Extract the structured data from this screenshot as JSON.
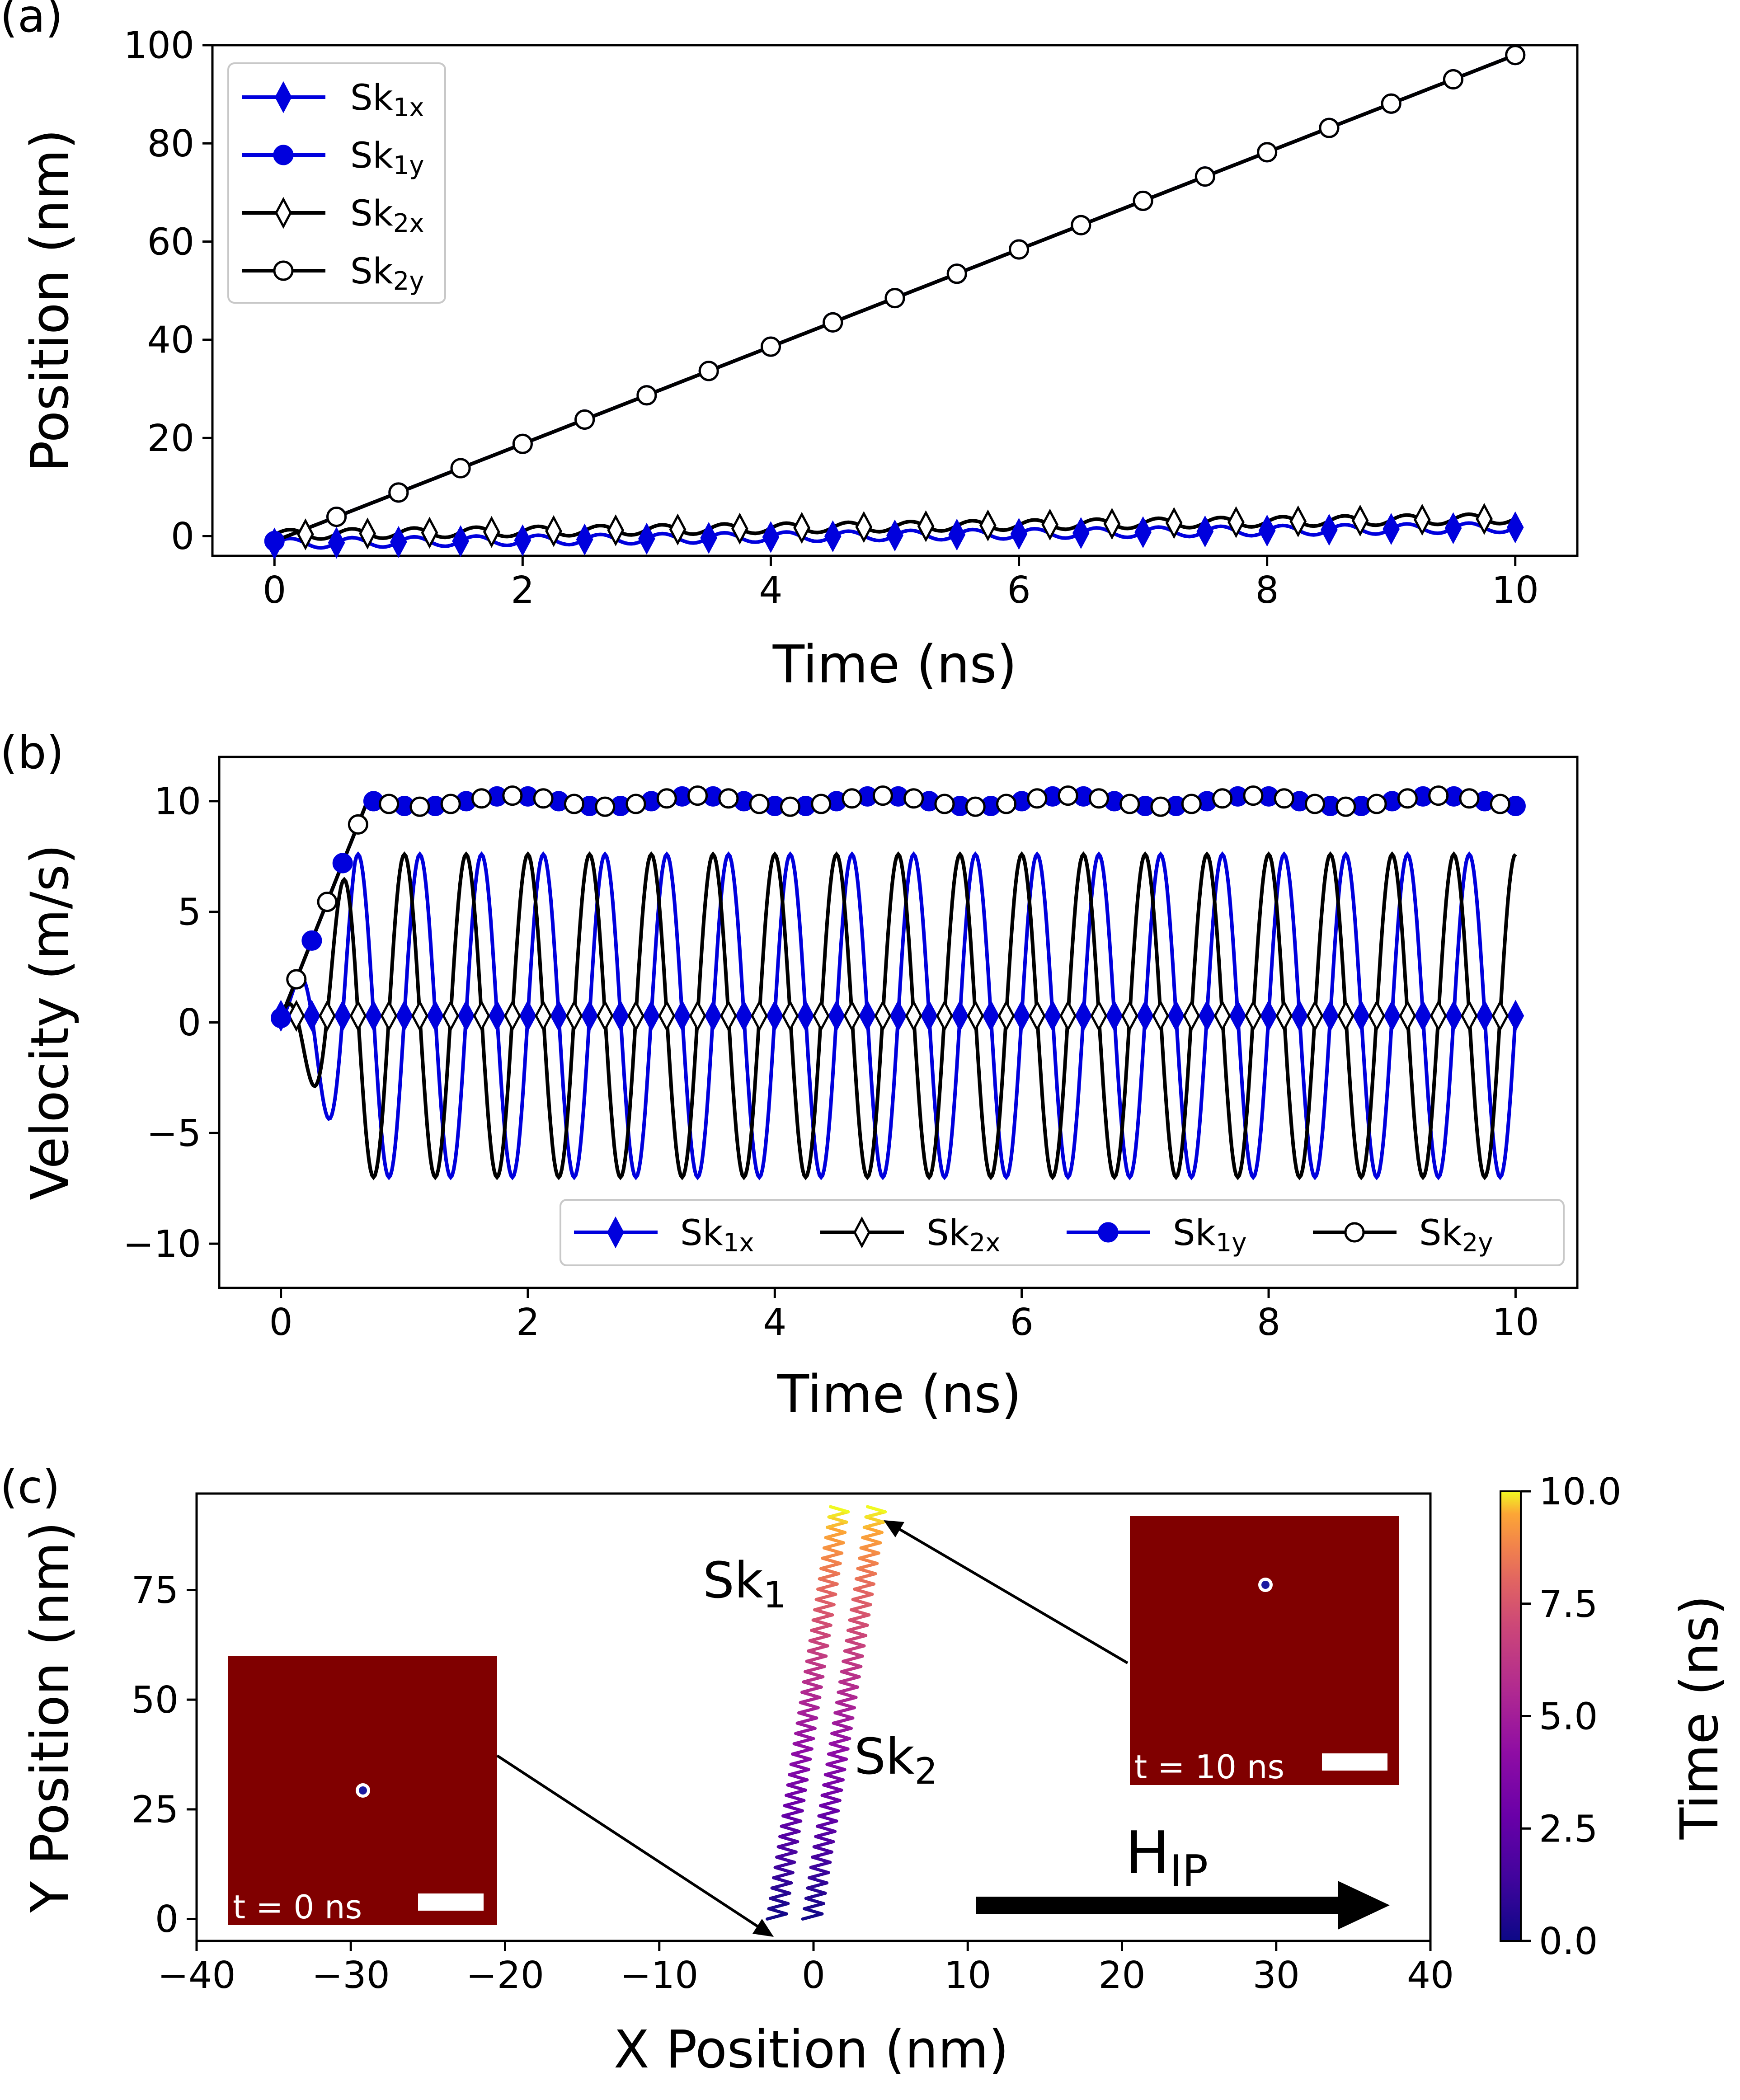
{
  "chart_data": [
    {
      "panel": "(a)",
      "type": "line",
      "xlabel": "Time (ns)",
      "ylabel": "Position (nm)",
      "xlim": [
        -0.5,
        10.5
      ],
      "ylim": [
        -4,
        100
      ],
      "xticks": [
        0,
        2,
        4,
        6,
        8,
        10
      ],
      "yticks": [
        0,
        20,
        40,
        60,
        80,
        100
      ],
      "grid": false,
      "legend": {
        "placement": "top-left",
        "entries": [
          {
            "base": "Sk",
            "sub": "1x"
          },
          {
            "base": "Sk",
            "sub": "1y"
          },
          {
            "base": "Sk",
            "sub": "2x"
          },
          {
            "base": "Sk",
            "sub": "2y"
          }
        ]
      },
      "series": [
        {
          "name": "Sk1x",
          "color": "#0000dd",
          "marker": "filled-diamond",
          "model": "x-oscillation",
          "offset": -1.5,
          "amplitude": 1.0,
          "drift": 0.33,
          "period_ns": 0.5,
          "range_ns": [
            0,
            10
          ]
        },
        {
          "name": "Sk1y",
          "color": "#0000dd",
          "marker": "filled-circle",
          "model": "y-linear",
          "slope_nm_per_ns": 9.9,
          "offset": -1.0,
          "range_ns": [
            0,
            10
          ]
        },
        {
          "name": "Sk2x",
          "color": "#000000",
          "marker": "open-diamond",
          "model": "x-oscillation",
          "offset": 0.3,
          "amplitude": 1.0,
          "drift": 0.33,
          "period_ns": 0.5,
          "range_ns": [
            0,
            10
          ]
        },
        {
          "name": "Sk2y",
          "color": "#000000",
          "marker": "open-circle",
          "model": "y-linear",
          "slope_nm_per_ns": 9.9,
          "offset": -1.0,
          "range_ns": [
            0,
            10
          ]
        }
      ]
    },
    {
      "panel": "(b)",
      "type": "line",
      "xlabel": "Time (ns)",
      "ylabel": "Velocity (m/s)",
      "xlim": [
        -0.5,
        10.5
      ],
      "ylim": [
        -12,
        12
      ],
      "xticks": [
        0,
        2,
        4,
        6,
        8,
        10
      ],
      "yticks": [
        -10,
        -5,
        0,
        5,
        10
      ],
      "ytick_labels": [
        "−10",
        "−5",
        "0",
        "5",
        "10"
      ],
      "grid": false,
      "legend": {
        "placement": "bottom-right",
        "entries": [
          {
            "base": "Sk",
            "sub": "1x"
          },
          {
            "base": "Sk",
            "sub": "2x"
          },
          {
            "base": "Sk",
            "sub": "1y"
          },
          {
            "base": "Sk",
            "sub": "2y"
          }
        ]
      },
      "series": [
        {
          "name": "Sk1x",
          "color": "#0000dd",
          "marker": "filled-diamond",
          "model": "vx-oscillation",
          "amplitude": 7.3,
          "period_ns": 0.5,
          "phase": 0.0,
          "range_ns": [
            0,
            10
          ]
        },
        {
          "name": "Sk2x",
          "color": "#000000",
          "marker": "open-diamond",
          "model": "vx-oscillation",
          "amplitude": 7.3,
          "period_ns": 0.5,
          "phase": 0.25,
          "range_ns": [
            0,
            10
          ]
        },
        {
          "name": "Sk1y",
          "color": "#0000dd",
          "marker": "filled-circle",
          "model": "vy-rise",
          "plateau": 10.0,
          "rise_time_ns": 0.7,
          "start_value": 0.2,
          "range_ns": [
            0,
            10
          ]
        },
        {
          "name": "Sk2y",
          "color": "#000000",
          "marker": "open-circle",
          "model": "vy-rise",
          "plateau": 10.0,
          "rise_time_ns": 0.7,
          "start_value": 0.2,
          "range_ns": [
            0,
            10
          ]
        }
      ]
    },
    {
      "panel": "(c)",
      "type": "line",
      "xlabel": "X Position (nm)",
      "ylabel": "Y Position (nm)",
      "xlim": [
        -40,
        40
      ],
      "ylim": [
        -5,
        97
      ],
      "xticks": [
        -40,
        -30,
        -20,
        -10,
        0,
        10,
        20,
        30,
        40
      ],
      "xtick_labels": [
        "−40",
        "−30",
        "−20",
        "−10",
        "0",
        "10",
        "20",
        "30",
        "40"
      ],
      "yticks": [
        0,
        25,
        50,
        75
      ],
      "grid": false,
      "trajectories": [
        {
          "name": "Sk1",
          "x_start": -2.4,
          "x_end": 1.7,
          "y_start": 0,
          "y_end": 94,
          "zigzag_amplitude_nm": 0.6,
          "zigzag_count": 40
        },
        {
          "name": "Sk2",
          "x_start": -0.1,
          "x_end": 4.1,
          "y_start": 0,
          "y_end": 94,
          "zigzag_amplitude_nm": 0.6,
          "zigzag_count": 40
        }
      ],
      "colorbar": {
        "label": "Time (ns)",
        "range": [
          0.0,
          10.0
        ],
        "ticks": [
          "0.0",
          "2.5",
          "5.0",
          "7.5",
          "10.0"
        ],
        "colormap": "plasma"
      }
    }
  ],
  "panel_labels": {
    "a": "(a)",
    "b": "(b)",
    "c": "(c)"
  },
  "annotations": {
    "sk1_label": {
      "base": "Sk",
      "sub": "1"
    },
    "sk2_label": {
      "base": "Sk",
      "sub": "2"
    },
    "field_label": {
      "base": "H",
      "sub": "IP"
    },
    "inset_start_time": "t = 0 ns",
    "inset_end_time": "t = 10 ns"
  },
  "colors": {
    "blue": "#0000dd",
    "black": "#000000",
    "inset_background": "#800000",
    "scale_bar": "#ffffff"
  }
}
